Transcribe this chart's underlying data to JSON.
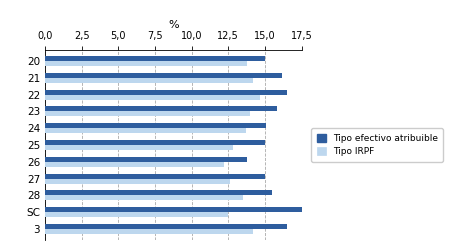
{
  "xlabel": "%",
  "categories": [
    "20",
    "21",
    "22",
    "23",
    "24",
    "25",
    "26",
    "27",
    "28",
    "SC",
    "3"
  ],
  "tipo_efectivo": [
    15.0,
    16.2,
    16.5,
    15.8,
    15.1,
    15.0,
    13.8,
    15.0,
    15.5,
    17.5,
    16.5
  ],
  "tipo_irpf": [
    13.8,
    14.2,
    14.7,
    14.0,
    13.7,
    12.8,
    12.2,
    12.6,
    13.5,
    12.5,
    14.2
  ],
  "color_efectivo": "#2E5D9E",
  "color_irpf": "#BDD7EE",
  "xlim": [
    0,
    17.5
  ],
  "xticks": [
    0.0,
    2.5,
    5.0,
    7.5,
    10.0,
    12.5,
    15.0,
    17.5
  ],
  "xtick_labels": [
    "0,0",
    "2,5",
    "5,0",
    "7,5",
    "10,0",
    "12,5",
    "15,0",
    "17,5"
  ],
  "legend_label1": "Tipo efectivo atribuible",
  "legend_label2": "Tipo IRPF",
  "background_color": "#FFFFFF",
  "grid_color": "#AAAAAA"
}
